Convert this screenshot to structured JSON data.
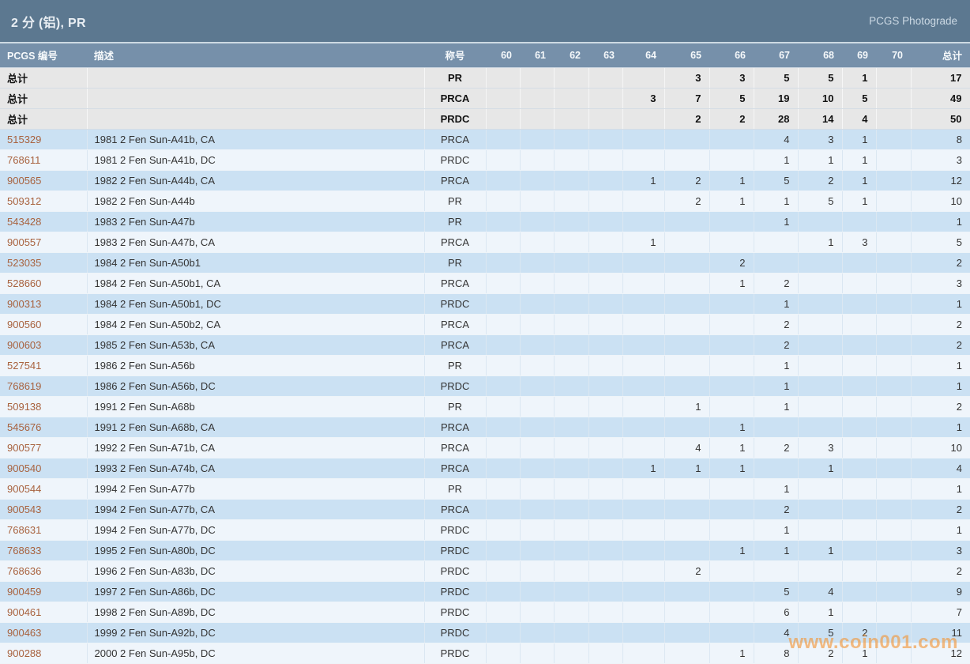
{
  "header": {
    "title": "2 分 (铝), PR",
    "link": "PCGS Photograde"
  },
  "watermark": "www.coin001.com",
  "table": {
    "columns": [
      "PCGS 编号",
      "描述",
      "称号",
      "60",
      "61",
      "62",
      "63",
      "64",
      "65",
      "66",
      "67",
      "68",
      "69",
      "70",
      "总计"
    ],
    "total_rows": [
      {
        "label": "总计",
        "designation": "PR",
        "grades": [
          "",
          "",
          "",
          "",
          "",
          "3",
          "3",
          "5",
          "5",
          "1",
          ""
        ],
        "total": 17
      },
      {
        "label": "总计",
        "designation": "PRCA",
        "grades": [
          "",
          "",
          "",
          "",
          "3",
          "7",
          "5",
          "19",
          "10",
          "5",
          ""
        ],
        "total": 49
      },
      {
        "label": "总计",
        "designation": "PRDC",
        "grades": [
          "",
          "",
          "",
          "",
          "",
          "2",
          "2",
          "28",
          "14",
          "4",
          ""
        ],
        "total": 50
      }
    ],
    "rows": [
      {
        "id": "515329",
        "desc": "1981 2 Fen Sun-A41b, CA",
        "designation": "PRCA",
        "grades": [
          "",
          "",
          "",
          "",
          "",
          "",
          "",
          "4",
          "3",
          "1",
          ""
        ],
        "total": 8
      },
      {
        "id": "768611",
        "desc": "1981 2 Fen Sun-A41b, DC",
        "designation": "PRDC",
        "grades": [
          "",
          "",
          "",
          "",
          "",
          "",
          "",
          "1",
          "1",
          "1",
          ""
        ],
        "total": 3
      },
      {
        "id": "900565",
        "desc": "1982 2 Fen Sun-A44b, CA",
        "designation": "PRCA",
        "grades": [
          "",
          "",
          "",
          "",
          "1",
          "2",
          "1",
          "5",
          "2",
          "1",
          ""
        ],
        "total": 12
      },
      {
        "id": "509312",
        "desc": "1982 2 Fen Sun-A44b",
        "designation": "PR",
        "grades": [
          "",
          "",
          "",
          "",
          "",
          "2",
          "1",
          "1",
          "5",
          "1",
          ""
        ],
        "total": 10
      },
      {
        "id": "543428",
        "desc": "1983 2 Fen Sun-A47b",
        "designation": "PR",
        "grades": [
          "",
          "",
          "",
          "",
          "",
          "",
          "",
          "1",
          "",
          "",
          ""
        ],
        "total": 1
      },
      {
        "id": "900557",
        "desc": "1983 2 Fen Sun-A47b, CA",
        "designation": "PRCA",
        "grades": [
          "",
          "",
          "",
          "",
          "1",
          "",
          "",
          "",
          "1",
          "3",
          ""
        ],
        "total": 5
      },
      {
        "id": "523035",
        "desc": "1984 2 Fen Sun-A50b1",
        "designation": "PR",
        "grades": [
          "",
          "",
          "",
          "",
          "",
          "",
          "2",
          "",
          "",
          "",
          ""
        ],
        "total": 2
      },
      {
        "id": "528660",
        "desc": "1984 2 Fen Sun-A50b1, CA",
        "designation": "PRCA",
        "grades": [
          "",
          "",
          "",
          "",
          "",
          "",
          "1",
          "2",
          "",
          "",
          ""
        ],
        "total": 3
      },
      {
        "id": "900313",
        "desc": "1984 2 Fen Sun-A50b1, DC",
        "designation": "PRDC",
        "grades": [
          "",
          "",
          "",
          "",
          "",
          "",
          "",
          "1",
          "",
          "",
          ""
        ],
        "total": 1
      },
      {
        "id": "900560",
        "desc": "1984 2 Fen Sun-A50b2, CA",
        "designation": "PRCA",
        "grades": [
          "",
          "",
          "",
          "",
          "",
          "",
          "",
          "2",
          "",
          "",
          ""
        ],
        "total": 2
      },
      {
        "id": "900603",
        "desc": "1985 2 Fen Sun-A53b, CA",
        "designation": "PRCA",
        "grades": [
          "",
          "",
          "",
          "",
          "",
          "",
          "",
          "2",
          "",
          "",
          ""
        ],
        "total": 2
      },
      {
        "id": "527541",
        "desc": "1986 2 Fen Sun-A56b",
        "designation": "PR",
        "grades": [
          "",
          "",
          "",
          "",
          "",
          "",
          "",
          "1",
          "",
          "",
          ""
        ],
        "total": 1
      },
      {
        "id": "768619",
        "desc": "1986 2 Fen Sun-A56b, DC",
        "designation": "PRDC",
        "grades": [
          "",
          "",
          "",
          "",
          "",
          "",
          "",
          "1",
          "",
          "",
          ""
        ],
        "total": 1
      },
      {
        "id": "509138",
        "desc": "1991 2 Fen Sun-A68b",
        "designation": "PR",
        "grades": [
          "",
          "",
          "",
          "",
          "",
          "1",
          "",
          "1",
          "",
          "",
          ""
        ],
        "total": 2
      },
      {
        "id": "545676",
        "desc": "1991 2 Fen Sun-A68b, CA",
        "designation": "PRCA",
        "grades": [
          "",
          "",
          "",
          "",
          "",
          "",
          "1",
          "",
          "",
          "",
          ""
        ],
        "total": 1
      },
      {
        "id": "900577",
        "desc": "1992 2 Fen Sun-A71b, CA",
        "designation": "PRCA",
        "grades": [
          "",
          "",
          "",
          "",
          "",
          "4",
          "1",
          "2",
          "3",
          "",
          ""
        ],
        "total": 10
      },
      {
        "id": "900540",
        "desc": "1993 2 Fen Sun-A74b, CA",
        "designation": "PRCA",
        "grades": [
          "",
          "",
          "",
          "",
          "1",
          "1",
          "1",
          "",
          "1",
          "",
          ""
        ],
        "total": 4
      },
      {
        "id": "900544",
        "desc": "1994 2 Fen Sun-A77b",
        "designation": "PR",
        "grades": [
          "",
          "",
          "",
          "",
          "",
          "",
          "",
          "1",
          "",
          "",
          ""
        ],
        "total": 1
      },
      {
        "id": "900543",
        "desc": "1994 2 Fen Sun-A77b, CA",
        "designation": "PRCA",
        "grades": [
          "",
          "",
          "",
          "",
          "",
          "",
          "",
          "2",
          "",
          "",
          ""
        ],
        "total": 2
      },
      {
        "id": "768631",
        "desc": "1994 2 Fen Sun-A77b, DC",
        "designation": "PRDC",
        "grades": [
          "",
          "",
          "",
          "",
          "",
          "",
          "",
          "1",
          "",
          "",
          ""
        ],
        "total": 1
      },
      {
        "id": "768633",
        "desc": "1995 2 Fen Sun-A80b, DC",
        "designation": "PRDC",
        "grades": [
          "",
          "",
          "",
          "",
          "",
          "",
          "1",
          "1",
          "1",
          "",
          ""
        ],
        "total": 3
      },
      {
        "id": "768636",
        "desc": "1996 2 Fen Sun-A83b, DC",
        "designation": "PRDC",
        "grades": [
          "",
          "",
          "",
          "",
          "",
          "2",
          "",
          "",
          "",
          "",
          ""
        ],
        "total": 2
      },
      {
        "id": "900459",
        "desc": "1997 2 Fen Sun-A86b, DC",
        "designation": "PRDC",
        "grades": [
          "",
          "",
          "",
          "",
          "",
          "",
          "",
          "5",
          "4",
          "",
          ""
        ],
        "total": 9
      },
      {
        "id": "900461",
        "desc": "1998 2 Fen Sun-A89b, DC",
        "designation": "PRDC",
        "grades": [
          "",
          "",
          "",
          "",
          "",
          "",
          "",
          "6",
          "1",
          "",
          ""
        ],
        "total": 7
      },
      {
        "id": "900463",
        "desc": "1999 2 Fen Sun-A92b, DC",
        "designation": "PRDC",
        "grades": [
          "",
          "",
          "",
          "",
          "",
          "",
          "",
          "4",
          "5",
          "2",
          ""
        ],
        "total": 11
      },
      {
        "id": "900288",
        "desc": "2000 2 Fen Sun-A95b, DC",
        "designation": "PRDC",
        "grades": [
          "",
          "",
          "",
          "",
          "",
          "",
          "1",
          "8",
          "2",
          "1",
          ""
        ],
        "total": 12
      }
    ]
  }
}
